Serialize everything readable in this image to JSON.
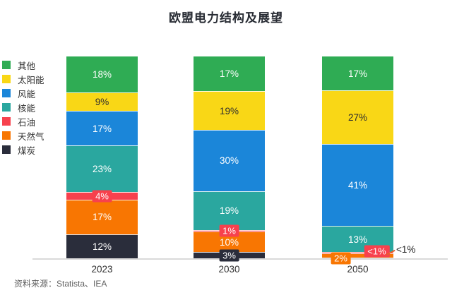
{
  "title": "欧盟电力结构及展望",
  "source": "资料来源：Statista、IEA",
  "colors": {
    "axis": "#DADADA",
    "title_text": "#272B33",
    "source_text": "#606060"
  },
  "chart_data": {
    "type": "bar",
    "stacked": true,
    "unit": "%",
    "title": "欧盟电力结构及展望",
    "categories": [
      "2023",
      "2030",
      "2050"
    ],
    "legend_position": "left",
    "grid": false,
    "ylim": [
      0,
      100
    ],
    "series": [
      {
        "name": "其他",
        "color": "#2FAC54",
        "values": [
          18,
          17,
          17
        ],
        "labels": [
          "18%",
          "17%",
          "17%"
        ],
        "label_color": "#FFFFFF"
      },
      {
        "name": "太阳能",
        "color": "#F9D716",
        "values": [
          9,
          19,
          27
        ],
        "labels": [
          "9%",
          "19%",
          "27%"
        ],
        "label_color": "#2E2E2E"
      },
      {
        "name": "风能",
        "color": "#1B86D9",
        "values": [
          17,
          30,
          41
        ],
        "labels": [
          "17%",
          "30%",
          "41%"
        ],
        "label_color": "#FFFFFF"
      },
      {
        "name": "核能",
        "color": "#2AA79F",
        "values": [
          23,
          19,
          13
        ],
        "labels": [
          "23%",
          "19%",
          "13%"
        ],
        "label_color": "#FFFFFF"
      },
      {
        "name": "石油",
        "color": "#F7414D",
        "values": [
          4,
          1,
          0.7
        ],
        "labels": [
          "4%",
          "1%",
          "<1%"
        ],
        "label_color": "#FFFFFF"
      },
      {
        "name": "天然气",
        "color": "#F87602",
        "values": [
          17,
          10,
          2
        ],
        "labels": [
          "17%",
          "10%",
          "2%"
        ],
        "label_color": "#FFFFFF"
      },
      {
        "name": "煤炭",
        "color": "#2A2D3B",
        "values": [
          12,
          3,
          0.5
        ],
        "labels": [
          "12%",
          "3%",
          "<1%"
        ],
        "label_color": "#FFFFFF"
      }
    ],
    "annotations": [
      {
        "text": "<1%",
        "category": "2050",
        "series": "煤炭"
      }
    ]
  }
}
